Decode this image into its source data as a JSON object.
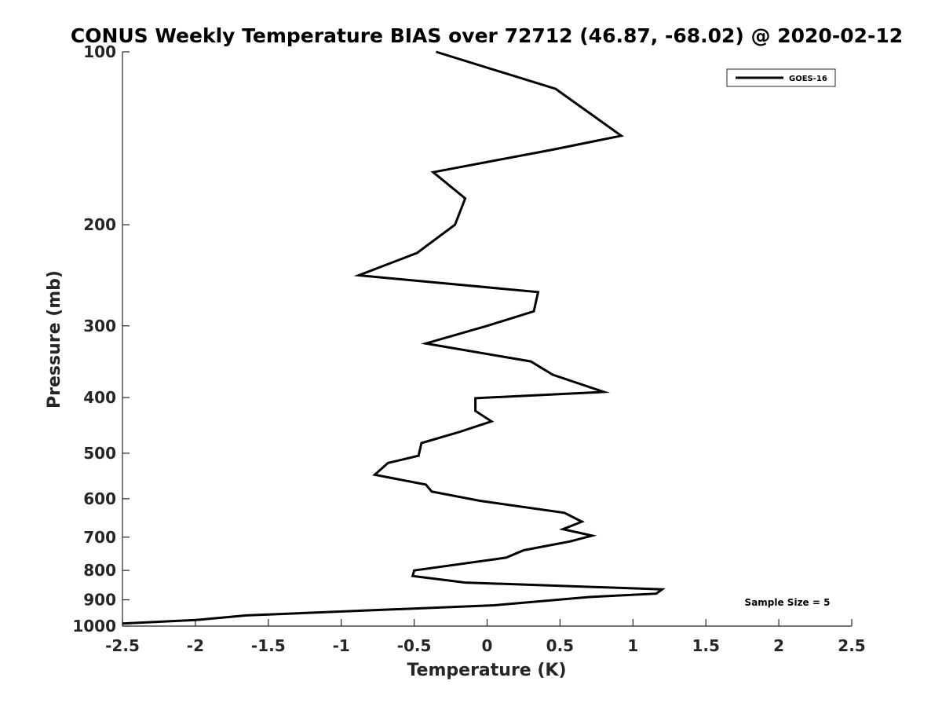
{
  "chart_data": {
    "type": "line",
    "title": "CONUS Weekly Temperature BIAS over 72712 (46.87, -68.02) @ 2020-02-12",
    "xlabel": "Temperature (K)",
    "ylabel": "Pressure (mb)",
    "xlim": [
      -2.5,
      2.5
    ],
    "ylim": [
      100,
      1000
    ],
    "y_scale": "log",
    "y_reversed": true,
    "grid": false,
    "legend": "top-right",
    "xticks": [
      -2.5,
      -2,
      -1.5,
      -1,
      -0.5,
      0,
      0.5,
      1,
      1.5,
      2,
      2.5
    ],
    "xtick_labels": [
      "-2.5",
      "-2",
      "-1.5",
      "-1",
      "-0.5",
      "0",
      "0.5",
      "1",
      "1.5",
      "2",
      "2.5"
    ],
    "yticks": [
      100,
      200,
      300,
      400,
      500,
      600,
      700,
      800,
      900,
      1000
    ],
    "ytick_labels": [
      "100",
      "200",
      "300",
      "400",
      "500",
      "600",
      "700",
      "800",
      "900",
      "1000"
    ],
    "series": [
      {
        "name": "GOES-16",
        "color": "#000000",
        "points": [
          {
            "x": -0.35,
            "y": 100
          },
          {
            "x": 0.47,
            "y": 116
          },
          {
            "x": 0.92,
            "y": 140
          },
          {
            "x": 0.45,
            "y": 148
          },
          {
            "x": -0.37,
            "y": 162
          },
          {
            "x": -0.15,
            "y": 180
          },
          {
            "x": -0.22,
            "y": 200
          },
          {
            "x": -0.48,
            "y": 224
          },
          {
            "x": -0.88,
            "y": 245
          },
          {
            "x": 0.35,
            "y": 262
          },
          {
            "x": 0.32,
            "y": 283
          },
          {
            "x": 0.0,
            "y": 300
          },
          {
            "x": -0.42,
            "y": 322
          },
          {
            "x": 0.3,
            "y": 346
          },
          {
            "x": 0.45,
            "y": 365
          },
          {
            "x": 0.8,
            "y": 391
          },
          {
            "x": -0.08,
            "y": 401
          },
          {
            "x": -0.08,
            "y": 422
          },
          {
            "x": 0.03,
            "y": 440
          },
          {
            "x": -0.2,
            "y": 460
          },
          {
            "x": -0.45,
            "y": 480
          },
          {
            "x": -0.47,
            "y": 505
          },
          {
            "x": -0.68,
            "y": 520
          },
          {
            "x": -0.77,
            "y": 545
          },
          {
            "x": -0.42,
            "y": 567
          },
          {
            "x": -0.38,
            "y": 583
          },
          {
            "x": -0.05,
            "y": 605
          },
          {
            "x": 0.53,
            "y": 635
          },
          {
            "x": 0.65,
            "y": 658
          },
          {
            "x": 0.52,
            "y": 678
          },
          {
            "x": 0.72,
            "y": 696
          },
          {
            "x": 0.57,
            "y": 712
          },
          {
            "x": 0.25,
            "y": 738
          },
          {
            "x": 0.13,
            "y": 760
          },
          {
            "x": -0.5,
            "y": 800
          },
          {
            "x": -0.51,
            "y": 818
          },
          {
            "x": -0.15,
            "y": 840
          },
          {
            "x": 1.2,
            "y": 863
          },
          {
            "x": 1.16,
            "y": 878
          },
          {
            "x": 0.7,
            "y": 890
          },
          {
            "x": 0.05,
            "y": 920
          },
          {
            "x": -1.65,
            "y": 958
          },
          {
            "x": -2.0,
            "y": 976
          },
          {
            "x": -2.5,
            "y": 990
          }
        ]
      }
    ],
    "annotations": [
      "Sample Size = 5"
    ]
  }
}
